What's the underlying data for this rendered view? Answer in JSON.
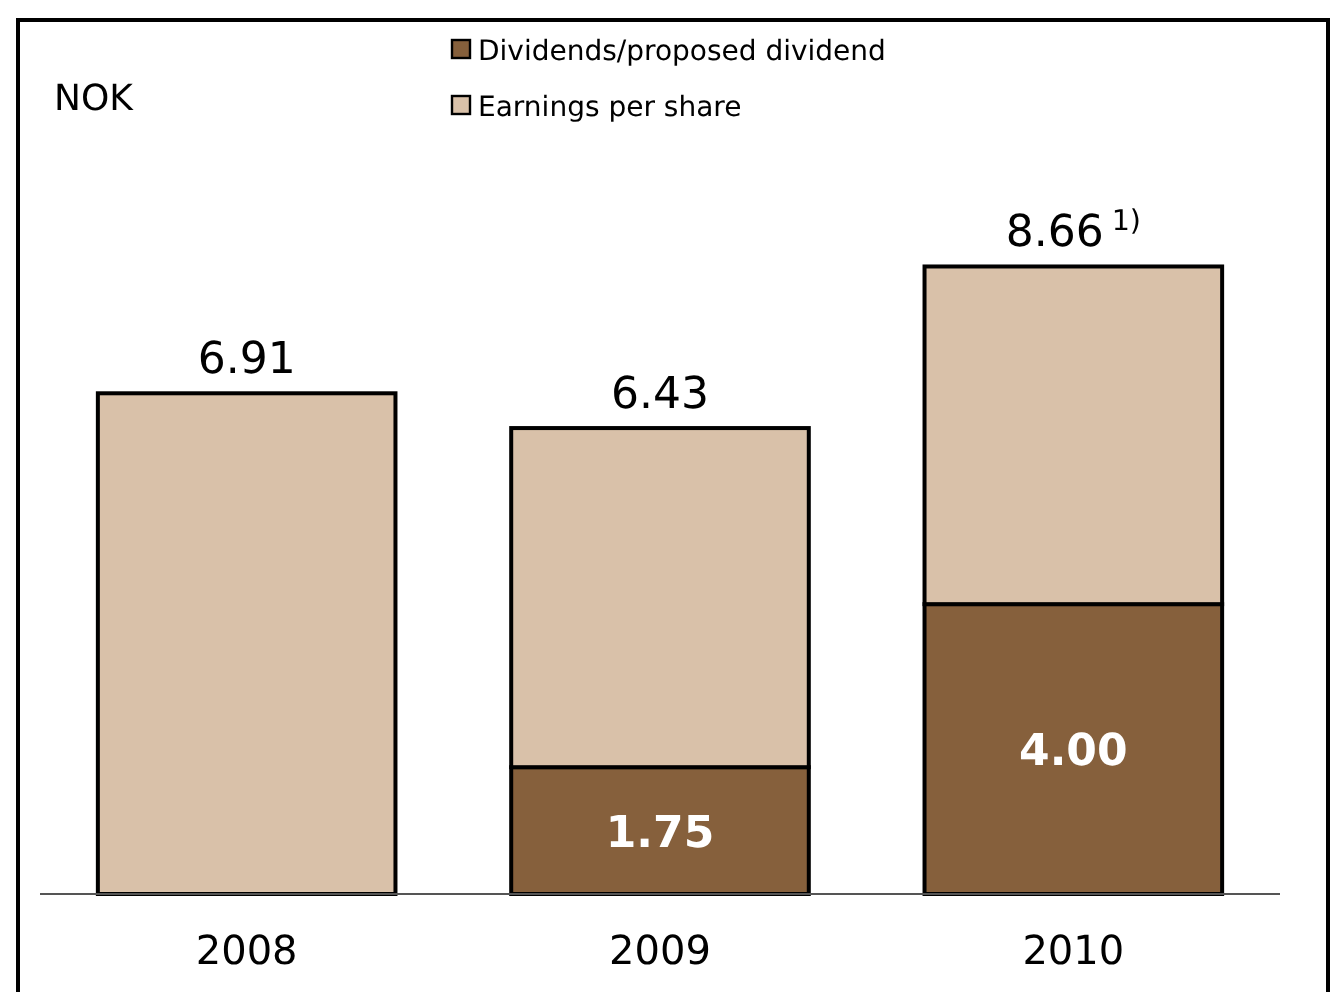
{
  "chart_data": {
    "type": "bar",
    "ylabel": "NOK",
    "categories": [
      "2008",
      "2009",
      "2010"
    ],
    "stacked": true,
    "legend": "top",
    "series": [
      {
        "name": "Dividends/proposed dividend",
        "color": "#86603c",
        "values": [
          null,
          1.75,
          4.0
        ],
        "value_labels": [
          null,
          "1.75",
          "4.00"
        ]
      },
      {
        "name": "Earnings per share",
        "color": "#d9c1a9",
        "values": [
          6.91,
          4.68,
          4.66
        ]
      }
    ],
    "totals": [
      "6.91",
      "6.43",
      "8.66$^{1)}$"
    ]
  }
}
